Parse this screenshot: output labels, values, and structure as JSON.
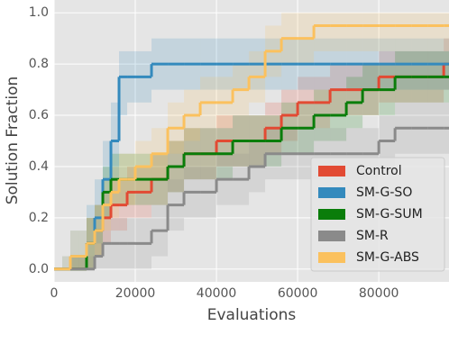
{
  "chart_data": {
    "type": "line",
    "drawstyle": "steps-post",
    "xlabel": "Evaluations",
    "ylabel": "Solution Fraction",
    "grid": true,
    "legend": "lower right",
    "xlim": [
      0,
      97300
    ],
    "ylim": [
      -0.05,
      1.05
    ],
    "xticks": [
      0,
      20000,
      40000,
      60000,
      80000
    ],
    "yticks": [
      {
        "value": 0,
        "label": "0.0"
      },
      0.2,
      0.4,
      0.6,
      0.8,
      {
        "value": 1,
        "label": "1.0"
      }
    ],
    "x": [
      0,
      2000,
      4000,
      6000,
      8000,
      10000,
      12000,
      14000,
      16000,
      18000,
      20000,
      24000,
      28000,
      32000,
      36000,
      40000,
      44000,
      48000,
      52000,
      56000,
      60000,
      64000,
      68000,
      72000,
      76000,
      80000,
      84000,
      88000,
      92000,
      96000
    ],
    "series": [
      {
        "name": "Control",
        "color": "#e24a33",
        "values": [
          0,
          0,
          0,
          0,
          0.1,
          0.15,
          0.2,
          0.25,
          0.25,
          0.3,
          0.3,
          0.35,
          0.4,
          0.45,
          0.45,
          0.5,
          0.5,
          0.5,
          0.55,
          0.6,
          0.65,
          0.65,
          0.7,
          0.7,
          0.7,
          0.75,
          0.75,
          0.75,
          0.75,
          0.8
        ],
        "lower": [
          0,
          0,
          0,
          0,
          0,
          0.05,
          0.1,
          0.15,
          0.15,
          0.2,
          0.2,
          0.25,
          0.3,
          0.35,
          0.35,
          0.4,
          0.4,
          0.4,
          0.45,
          0.5,
          0.55,
          0.55,
          0.6,
          0.6,
          0.6,
          0.65,
          0.65,
          0.65,
          0.65,
          0.7
        ],
        "upper": [
          0,
          0,
          0.05,
          0.05,
          0.2,
          0.25,
          0.3,
          0.35,
          0.35,
          0.4,
          0.4,
          0.45,
          0.5,
          0.55,
          0.55,
          0.6,
          0.6,
          0.6,
          0.65,
          0.7,
          0.75,
          0.75,
          0.8,
          0.8,
          0.8,
          0.85,
          0.85,
          0.85,
          0.85,
          0.9
        ]
      },
      {
        "name": "SM-G-SO",
        "color": "#348abd",
        "values": [
          0,
          0,
          0.05,
          0.05,
          0.1,
          0.2,
          0.35,
          0.5,
          0.75,
          0.75,
          0.75,
          0.8,
          0.8,
          0.8,
          0.8,
          0.8,
          0.8,
          0.8,
          0.8,
          0.8,
          0.8,
          0.8,
          0.8,
          0.8,
          0.8,
          0.8,
          0.8,
          0.8,
          0.8,
          0.8
        ],
        "lower": [
          0,
          0,
          0,
          0,
          0,
          0.1,
          0.2,
          0.35,
          0.6,
          0.65,
          0.65,
          0.7,
          0.7,
          0.7,
          0.7,
          0.7,
          0.7,
          0.7,
          0.7,
          0.7,
          0.7,
          0.7,
          0.7,
          0.7,
          0.7,
          0.7,
          0.7,
          0.7,
          0.7,
          0.7
        ],
        "upper": [
          0,
          0.05,
          0.15,
          0.15,
          0.25,
          0.35,
          0.5,
          0.65,
          0.85,
          0.85,
          0.85,
          0.9,
          0.9,
          0.9,
          0.9,
          0.9,
          0.9,
          0.9,
          0.9,
          0.9,
          0.9,
          0.9,
          0.9,
          0.9,
          0.9,
          0.9,
          0.9,
          0.9,
          0.9,
          0.9
        ]
      },
      {
        "name": "SM-G-SUM",
        "color": "#0a7d0a",
        "values": [
          0,
          0,
          0,
          0,
          0.1,
          0.15,
          0.3,
          0.35,
          0.35,
          0.35,
          0.35,
          0.35,
          0.4,
          0.45,
          0.45,
          0.45,
          0.5,
          0.5,
          0.5,
          0.55,
          0.55,
          0.6,
          0.6,
          0.65,
          0.7,
          0.7,
          0.75,
          0.75,
          0.75,
          0.75
        ],
        "lower": [
          0,
          0,
          0,
          0,
          0,
          0.05,
          0.2,
          0.25,
          0.25,
          0.25,
          0.25,
          0.25,
          0.3,
          0.35,
          0.35,
          0.35,
          0.4,
          0.4,
          0.4,
          0.45,
          0.45,
          0.5,
          0.5,
          0.55,
          0.6,
          0.6,
          0.65,
          0.65,
          0.65,
          0.65
        ],
        "upper": [
          0,
          0,
          0.05,
          0.05,
          0.2,
          0.25,
          0.4,
          0.45,
          0.45,
          0.45,
          0.45,
          0.45,
          0.5,
          0.55,
          0.55,
          0.55,
          0.6,
          0.6,
          0.6,
          0.65,
          0.65,
          0.7,
          0.7,
          0.75,
          0.8,
          0.8,
          0.85,
          0.85,
          0.85,
          0.85
        ]
      },
      {
        "name": "SM-R",
        "color": "#8a8a8a",
        "values": [
          0,
          0,
          0,
          0,
          0,
          0.05,
          0.1,
          0.1,
          0.1,
          0.1,
          0.1,
          0.15,
          0.25,
          0.3,
          0.3,
          0.35,
          0.35,
          0.4,
          0.45,
          0.45,
          0.45,
          0.45,
          0.45,
          0.45,
          0.45,
          0.5,
          0.55,
          0.55,
          0.55,
          0.55
        ],
        "lower": [
          0,
          0,
          0,
          0,
          0,
          0,
          0,
          0,
          0,
          0,
          0,
          0.05,
          0.15,
          0.2,
          0.2,
          0.25,
          0.25,
          0.3,
          0.35,
          0.35,
          0.35,
          0.35,
          0.35,
          0.35,
          0.35,
          0.4,
          0.45,
          0.45,
          0.45,
          0.45
        ],
        "upper": [
          0,
          0,
          0.05,
          0.05,
          0.05,
          0.15,
          0.2,
          0.2,
          0.2,
          0.2,
          0.2,
          0.25,
          0.35,
          0.4,
          0.4,
          0.45,
          0.45,
          0.5,
          0.55,
          0.55,
          0.55,
          0.55,
          0.55,
          0.55,
          0.55,
          0.6,
          0.65,
          0.65,
          0.65,
          0.65
        ]
      },
      {
        "name": "SM-G-ABS",
        "color": "#fbc15e",
        "values": [
          0,
          0,
          0.05,
          0.05,
          0.1,
          0.15,
          0.25,
          0.3,
          0.35,
          0.35,
          0.4,
          0.45,
          0.55,
          0.6,
          0.65,
          0.65,
          0.7,
          0.75,
          0.85,
          0.9,
          0.9,
          0.95,
          0.95,
          0.95,
          0.95,
          0.95,
          0.95,
          0.95,
          0.95,
          0.95
        ],
        "lower": [
          0,
          0,
          0,
          0,
          0,
          0.05,
          0.15,
          0.2,
          0.25,
          0.25,
          0.3,
          0.35,
          0.45,
          0.5,
          0.55,
          0.55,
          0.6,
          0.65,
          0.75,
          0.8,
          0.8,
          0.85,
          0.85,
          0.85,
          0.85,
          0.85,
          0.85,
          0.85,
          0.85,
          0.85
        ],
        "upper": [
          0,
          0.05,
          0.15,
          0.15,
          0.2,
          0.25,
          0.35,
          0.4,
          0.45,
          0.45,
          0.5,
          0.55,
          0.65,
          0.7,
          0.75,
          0.75,
          0.8,
          0.85,
          0.95,
          1,
          1,
          1,
          1,
          1,
          1,
          1,
          1,
          1,
          1,
          1
        ]
      }
    ]
  }
}
